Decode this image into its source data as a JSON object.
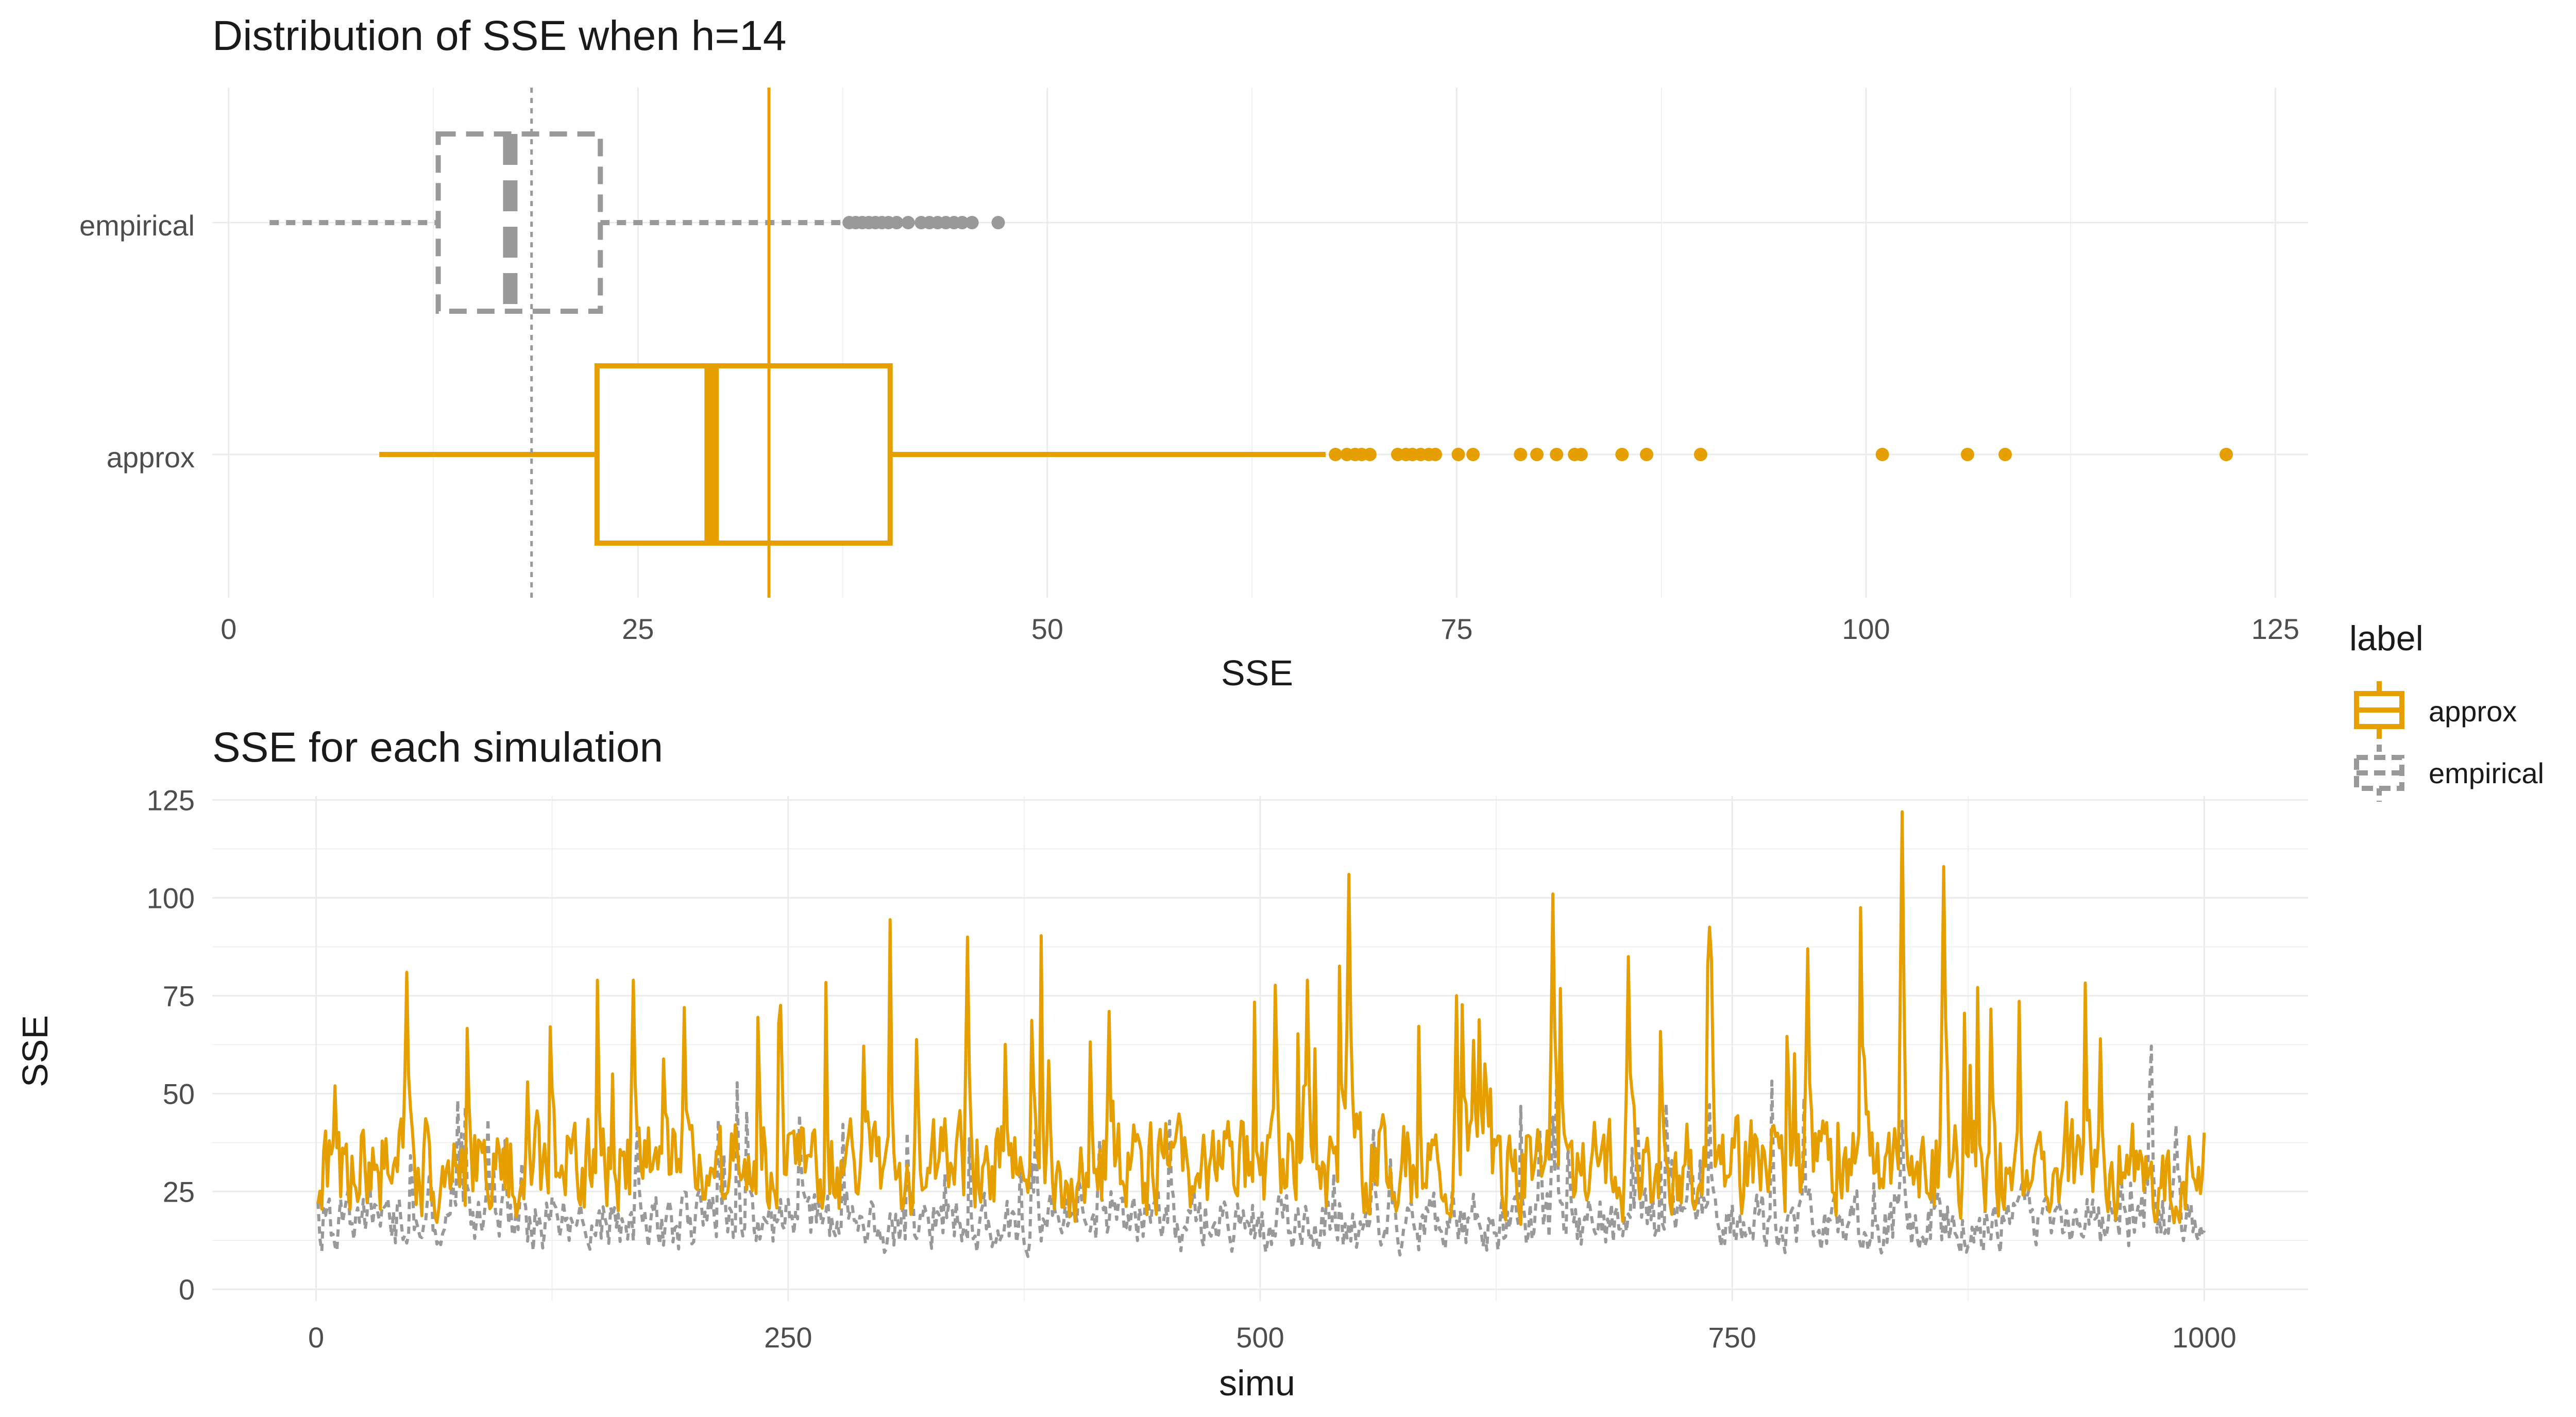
{
  "colors": {
    "approx": "#E69F00",
    "empirical": "#999999",
    "grid": "#EBEBEB",
    "text": "#4D4D4D",
    "title": "#1A1A1A"
  },
  "legend": {
    "title": "label",
    "placement": "right",
    "items": [
      {
        "label": "approx",
        "color": "#E69F00",
        "linetype": "solid"
      },
      {
        "label": "empirical",
        "color": "#999999",
        "linetype": "dashed"
      }
    ]
  },
  "chart_data": [
    {
      "type": "boxplot",
      "title": "Distribution of SSE when h=14",
      "xlabel": "SSE",
      "ylabel": "",
      "xlim": [
        -1,
        127
      ],
      "xticks": [
        0,
        25,
        50,
        75,
        100,
        125
      ],
      "grid": true,
      "categories": [
        "empirical",
        "approx"
      ],
      "series": [
        {
          "name": "empirical",
          "whisker_low": 2.5,
          "q1": 12.8,
          "median": 17.2,
          "q3": 22.7,
          "whisker_high": 37.5,
          "outliers": [
            37.9,
            38.3,
            38.7,
            39.1,
            39.5,
            39.9,
            40.3,
            40.8,
            41.5,
            42.3,
            42.8,
            43.3,
            43.8,
            44.3,
            44.8,
            45.4,
            47.0
          ]
        },
        {
          "name": "approx",
          "whisker_low": 9.2,
          "q1": 22.5,
          "median": 29.5,
          "q3": 40.4,
          "whisker_high": 67.0,
          "outliers": [
            67.6,
            68.3,
            68.8,
            69.2,
            69.7,
            71.4,
            71.9,
            72.3,
            72.8,
            73.3,
            73.7,
            75.1,
            76.0,
            78.9,
            79.9,
            81.1,
            82.2,
            82.6,
            85.1,
            86.6,
            89.9,
            101.0,
            106.2,
            108.5,
            122.0
          ]
        }
      ],
      "annotations": [
        {
          "kind": "vline",
          "series": "approx",
          "linetype": "solid",
          "x": 33.0
        },
        {
          "kind": "vline",
          "series": "empirical",
          "linetype": "dotted",
          "x": 18.5
        }
      ]
    },
    {
      "type": "line",
      "title": "SSE for each simulation",
      "xlabel": "simu",
      "ylabel": "SSE",
      "xlim": [
        -55,
        1055
      ],
      "ylim": [
        -3,
        126
      ],
      "xticks": [
        0,
        250,
        500,
        750,
        1000
      ],
      "yticks": [
        0,
        25,
        50,
        75,
        100,
        125
      ],
      "grid": true,
      "x_range": [
        1,
        1000
      ],
      "series": [
        {
          "name": "approx",
          "linetype": "solid",
          "peaks": [
            [
              10,
              52
            ],
            [
              48,
              81
            ],
            [
              112,
              53
            ],
            [
              168,
              79
            ],
            [
              195,
              72
            ],
            [
              345,
              90
            ],
            [
              420,
              71
            ],
            [
              525,
              79
            ],
            [
              547,
              106
            ],
            [
              604,
              75
            ],
            [
              655,
              101
            ],
            [
              695,
              85
            ],
            [
              790,
              87
            ],
            [
              840,
              122
            ],
            [
              862,
              108
            ],
            [
              945,
              64
            ],
            [
              1000,
              40
            ]
          ]
        },
        {
          "name": "empirical",
          "linetype": "dashed",
          "peaks": [
            [
              100,
              38
            ],
            [
              170,
              40
            ],
            [
              415,
              38
            ],
            [
              560,
              41
            ],
            [
              655,
              44
            ],
            [
              700,
              42
            ],
            [
              840,
              43
            ],
            [
              985,
              42
            ]
          ]
        }
      ]
    }
  ]
}
